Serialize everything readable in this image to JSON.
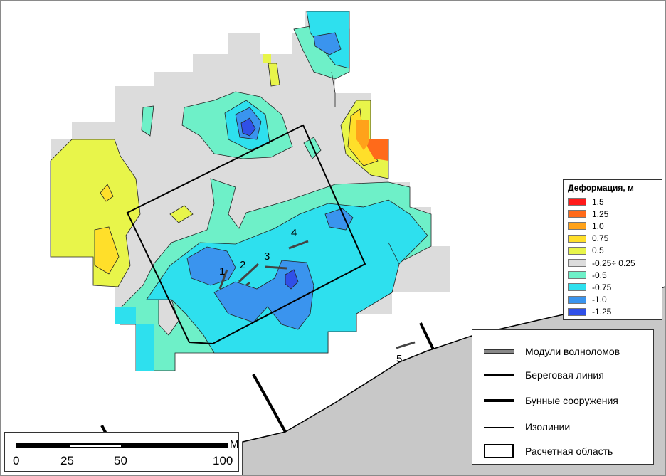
{
  "legend": {
    "title": "Деформация, м",
    "items": [
      {
        "label": "1.5",
        "color": "#ff1a1a"
      },
      {
        "label": "1.25",
        "color": "#ff6a1a"
      },
      {
        "label": "1.0",
        "color": "#ffa21a"
      },
      {
        "label": "0.75",
        "color": "#ffdf2a"
      },
      {
        "label": "0.5",
        "color": "#e8f54a"
      },
      {
        "label": "-0.25÷ 0.25",
        "color": "#dcdcdc"
      },
      {
        "label": "-0.5",
        "color": "#6ef0c8"
      },
      {
        "label": "-0.75",
        "color": "#2ee0ee"
      },
      {
        "label": "-1.0",
        "color": "#3a94ee"
      },
      {
        "label": "-1.25",
        "color": "#3050e8"
      }
    ]
  },
  "symbols": {
    "items": [
      {
        "label": "Модули волноломов"
      },
      {
        "label": "Береговая линия"
      },
      {
        "label": "Бунные сооружения"
      },
      {
        "label": "Изолинии"
      },
      {
        "label": "Расчетная область"
      }
    ]
  },
  "breakwater_labels": [
    "1",
    "2",
    "3",
    "4",
    "5"
  ],
  "scale_bar": {
    "unit": "М",
    "ticks": [
      "0",
      "25",
      "50",
      "100"
    ]
  }
}
